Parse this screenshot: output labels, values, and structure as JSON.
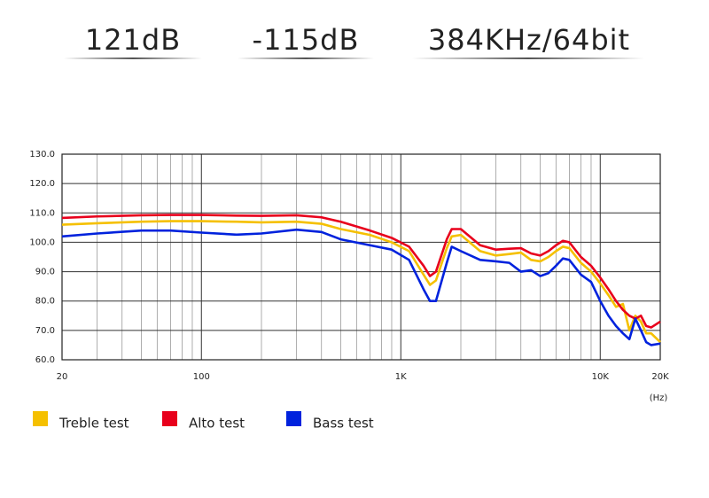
{
  "header": {
    "specs": [
      "121dB",
      "-115dB",
      "384KHz/64bit"
    ]
  },
  "chart_data": {
    "type": "line",
    "log_x": true,
    "grid": true,
    "x_label": "(Hz)",
    "x": [
      20,
      30,
      50,
      70,
      100,
      150,
      200,
      300,
      400,
      500,
      700,
      900,
      1100,
      1300,
      1400,
      1500,
      1700,
      1800,
      2000,
      2500,
      3000,
      3500,
      4000,
      4500,
      5000,
      5500,
      6000,
      6500,
      7000,
      8000,
      9000,
      10000,
      11000,
      12000,
      13000,
      14000,
      15000,
      16000,
      17000,
      18000,
      20000
    ],
    "series": [
      {
        "name": "Treble test",
        "color": "#f5c000",
        "values": [
          106,
          106.5,
          107,
          107.2,
          107.2,
          107,
          106.8,
          107,
          106.3,
          104.5,
          102.5,
          100,
          97,
          89,
          85.5,
          87,
          98,
          102,
          102.5,
          97,
          95.5,
          96,
          96.5,
          94,
          93.5,
          95,
          97,
          98.5,
          98,
          93,
          90,
          86,
          82,
          78,
          79,
          70,
          75,
          73,
          69,
          69,
          66
        ]
      },
      {
        "name": "Alto test",
        "color": "#e8001c",
        "values": [
          108.3,
          108.8,
          109.2,
          109.3,
          109.3,
          109.1,
          109,
          109.2,
          108.5,
          107,
          104,
          101.5,
          98.5,
          92,
          88.5,
          90,
          101,
          104.5,
          104.5,
          99,
          97.5,
          97.8,
          98,
          96.2,
          95.5,
          97,
          99,
          100.5,
          100,
          95,
          92,
          88,
          84,
          80,
          77,
          75,
          74,
          75,
          71.5,
          71,
          73
        ]
      },
      {
        "name": "Bass test",
        "color": "#0022dd",
        "values": [
          102,
          103,
          104,
          104,
          103.3,
          102.6,
          103,
          104.3,
          103.5,
          101,
          99,
          97.5,
          94,
          84,
          80,
          80,
          93,
          98.5,
          97,
          94,
          93.5,
          93,
          90,
          90.5,
          88.5,
          89.5,
          92,
          94.5,
          94,
          89,
          86.5,
          80,
          75,
          71.5,
          69,
          67,
          74,
          70,
          66,
          65,
          65.5
        ]
      }
    ],
    "xlim": [
      20,
      20000
    ],
    "xticks": [
      20,
      100,
      {
        "value": 1000,
        "label": "1K"
      },
      {
        "value": 10000,
        "label": "10K"
      },
      {
        "value": 20000,
        "label": "20K"
      }
    ],
    "x_minor_grid": [
      30,
      40,
      50,
      60,
      70,
      80,
      90,
      200,
      300,
      400,
      500,
      600,
      700,
      800,
      900,
      2000,
      3000,
      4000,
      5000,
      6000,
      7000,
      8000,
      9000
    ],
    "ylim": [
      60,
      130
    ],
    "yticks": [
      {
        "value": 60,
        "label": "60.0"
      },
      {
        "value": 70,
        "label": "70.0"
      },
      {
        "value": 80,
        "label": "80.0"
      },
      {
        "value": 90,
        "label": "90.0"
      },
      {
        "value": 100,
        "label": "100.0"
      },
      {
        "value": 110,
        "label": "110.0"
      },
      {
        "value": 120,
        "label": "120.0"
      },
      {
        "value": 130,
        "label": "130.0"
      }
    ]
  }
}
